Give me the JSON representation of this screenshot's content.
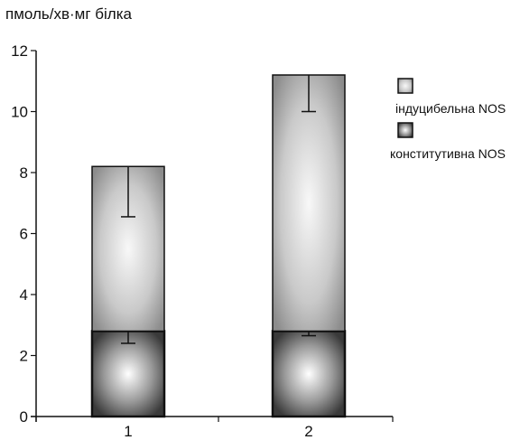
{
  "chart_data": {
    "type": "bar",
    "stacked": true,
    "ylabel": "пмоль/хв·мг  білка",
    "categories": [
      "1",
      "2"
    ],
    "ylim": [
      0,
      12
    ],
    "yticks": [
      0,
      2,
      4,
      6,
      8,
      10,
      12
    ],
    "series": [
      {
        "name": "конститутивна NOS",
        "values": [
          2.8,
          2.8
        ],
        "error": [
          0.4,
          0.15
        ]
      },
      {
        "name": "індуцибельна NOS",
        "values": [
          5.4,
          8.4
        ],
        "error": [
          1.65,
          1.2
        ]
      }
    ],
    "legend_position": "right",
    "grid": false,
    "colors": {
      "constitutive_center": "#ffffff",
      "constitutive_edge": "#3a3a3a",
      "inducible_center": "#f8f8f8",
      "inducible_edge": "#8c8c8c",
      "outline": "#111111"
    }
  }
}
